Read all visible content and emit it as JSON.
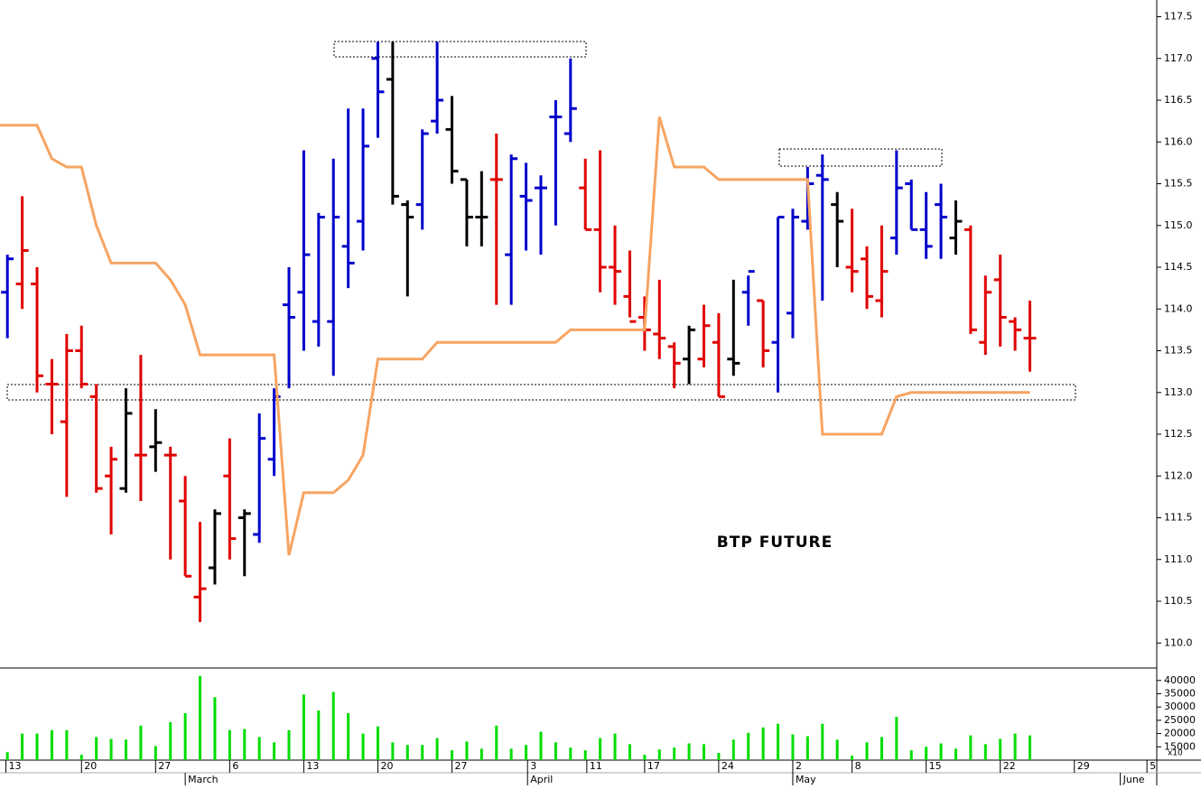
{
  "chart_data": [
    {
      "type": "ohlc",
      "annotation": "BTP FUTURE",
      "xlim": [
        -0.5,
        77.5
      ],
      "ylim": [
        109.7,
        117.7
      ],
      "yticks": [
        {
          "value": 110,
          "label": "110.0"
        },
        {
          "value": 110.5,
          "label": "110.5"
        },
        {
          "value": 111,
          "label": "111.0"
        },
        {
          "value": 111.5,
          "label": "111.5"
        },
        {
          "value": 112,
          "label": "112.0"
        },
        {
          "value": 112.5,
          "label": "112.5"
        },
        {
          "value": 113,
          "label": "113.0"
        },
        {
          "value": 113.5,
          "label": "113.5"
        },
        {
          "value": 114,
          "label": "114.0"
        },
        {
          "value": 114.5,
          "label": "114.5"
        },
        {
          "value": 115,
          "label": "115.0"
        },
        {
          "value": 115.5,
          "label": "115.5"
        },
        {
          "value": 116,
          "label": "116.0"
        },
        {
          "value": 116.5,
          "label": "116.5"
        },
        {
          "value": 117,
          "label": "117.0"
        },
        {
          "value": 117.5,
          "label": "117.5"
        }
      ],
      "xticks": [
        {
          "value": -0.1,
          "label": "13"
        },
        {
          "value": 5,
          "label": "20"
        },
        {
          "value": 10,
          "label": "27"
        },
        {
          "value": 15,
          "label": "6"
        },
        {
          "value": 20,
          "label": "13"
        },
        {
          "value": 25,
          "label": "20"
        },
        {
          "value": 30,
          "label": "27"
        },
        {
          "value": 35.1,
          "label": "3"
        },
        {
          "value": 39.1,
          "label": "11"
        },
        {
          "value": 43,
          "label": "17"
        },
        {
          "value": 48,
          "label": "24"
        },
        {
          "value": 53,
          "label": "2"
        },
        {
          "value": 57,
          "label": "8"
        },
        {
          "value": 62,
          "label": "15"
        },
        {
          "value": 67,
          "label": "22"
        },
        {
          "value": 72,
          "label": "29"
        },
        {
          "value": 76.9,
          "label": "5"
        }
      ],
      "month_ticks": [
        {
          "value": 12,
          "label": "March"
        },
        {
          "value": 35.1,
          "label": "April"
        },
        {
          "value": 53,
          "label": "May"
        },
        {
          "value": 75.1,
          "label": "June"
        }
      ],
      "open": [
        114.2,
        114.3,
        114.3,
        113.1,
        112.65,
        113.5,
        112.95,
        112.0,
        111.85,
        112.25,
        112.35,
        112.25,
        111.7,
        110.55,
        110.9,
        112.0,
        111.5,
        111.3,
        112.2,
        114.05,
        114.2,
        113.85,
        113.85,
        114.75,
        115.05,
        117.0,
        116.75,
        115.25,
        115.25,
        116.25,
        116.15,
        115.55,
        115.1,
        115.55,
        114.65,
        115.35,
        115.45,
        116.3,
        116.1,
        115.45,
        114.95,
        114.5,
        114.15,
        113.9,
        113.7,
        113.55,
        113.4,
        113.4,
        113.6,
        113.4,
        114.2,
        114.1,
        113.6,
        113.95,
        115.05,
        115.6,
        115.25,
        114.5,
        114.6,
        114.1,
        114.85,
        115.5,
        114.95,
        115.25,
        114.85,
        114.95,
        113.6,
        114.35,
        113.85,
        113.65
      ],
      "high": [
        114.65,
        115.35,
        114.5,
        113.4,
        113.7,
        113.8,
        113.1,
        112.35,
        113.05,
        113.45,
        112.8,
        112.35,
        112.0,
        111.45,
        111.6,
        112.45,
        111.6,
        112.75,
        113.05,
        114.5,
        115.9,
        115.15,
        115.8,
        116.4,
        116.4,
        117.2,
        117.2,
        115.3,
        116.15,
        117.2,
        116.55,
        115.55,
        115.65,
        116.1,
        115.85,
        115.75,
        115.6,
        116.5,
        117.0,
        115.8,
        115.9,
        115.0,
        114.7,
        114.15,
        114.35,
        113.6,
        113.8,
        114.05,
        113.95,
        114.35,
        114.4,
        114.1,
        115.1,
        115.2,
        115.7,
        115.85,
        115.4,
        115.2,
        114.75,
        115.0,
        115.9,
        115.55,
        115.4,
        115.5,
        115.3,
        115.0,
        114.4,
        114.65,
        113.9,
        114.1
      ],
      "low": [
        113.65,
        114.0,
        113.0,
        112.5,
        111.75,
        113.05,
        111.8,
        111.3,
        111.8,
        111.7,
        112.05,
        111.0,
        110.8,
        110.25,
        110.7,
        111.0,
        110.8,
        111.2,
        112.0,
        113.05,
        113.5,
        113.55,
        113.2,
        114.25,
        114.7,
        116.05,
        115.25,
        114.15,
        114.95,
        116.1,
        115.5,
        114.75,
        114.75,
        114.05,
        114.05,
        114.7,
        114.65,
        115.0,
        116.0,
        114.95,
        114.2,
        114.05,
        113.9,
        113.5,
        113.4,
        113.05,
        113.1,
        113.3,
        112.95,
        113.2,
        113.8,
        113.3,
        113.0,
        113.65,
        114.95,
        114.1,
        114.5,
        114.2,
        114.0,
        113.9,
        114.65,
        114.95,
        114.6,
        114.6,
        114.65,
        113.7,
        113.45,
        113.55,
        113.5,
        113.25
      ],
      "close": [
        114.6,
        114.7,
        113.2,
        113.1,
        113.5,
        113.1,
        111.85,
        112.2,
        112.75,
        112.25,
        112.4,
        112.25,
        110.8,
        110.65,
        111.55,
        111.25,
        111.55,
        112.45,
        112.95,
        113.9,
        114.65,
        115.1,
        115.1,
        114.55,
        115.95,
        116.6,
        115.35,
        115.1,
        116.1,
        116.5,
        115.65,
        115.1,
        115.1,
        115.55,
        115.8,
        115.3,
        115.45,
        116.3,
        116.4,
        114.95,
        114.5,
        114.45,
        113.85,
        113.75,
        113.65,
        113.35,
        113.75,
        113.8,
        112.95,
        113.35,
        114.45,
        113.5,
        115.1,
        115.1,
        115.5,
        115.55,
        115.05,
        114.45,
        114.15,
        114.45,
        115.45,
        114.95,
        114.75,
        115.1,
        115.05,
        113.75,
        114.2,
        113.9,
        113.75,
        113.65
      ],
      "colors": [
        "#0000cc",
        "#e00000",
        "#e00000",
        "#e00000",
        "#e00000",
        "#e00000",
        "#e00000",
        "#e00000",
        "#000000",
        "#e00000",
        "#000000",
        "#e00000",
        "#e00000",
        "#e00000",
        "#000000",
        "#e00000",
        "#000000",
        "#0000cc",
        "#0000cc",
        "#0000cc",
        "#0000cc",
        "#0000cc",
        "#0000cc",
        "#0000cc",
        "#0000cc",
        "#0000cc",
        "#000000",
        "#000000",
        "#0000cc",
        "#0000cc",
        "#000000",
        "#000000",
        "#000000",
        "#e00000",
        "#0000cc",
        "#0000cc",
        "#0000cc",
        "#0000cc",
        "#0000cc",
        "#e00000",
        "#e00000",
        "#e00000",
        "#e00000",
        "#e00000",
        "#e00000",
        "#e00000",
        "#000000",
        "#e00000",
        "#e00000",
        "#000000",
        "#0000cc",
        "#e00000",
        "#0000cc",
        "#0000cc",
        "#0000cc",
        "#0000cc",
        "#000000",
        "#e00000",
        "#e00000",
        "#e00000",
        "#0000cc",
        "#0000cc",
        "#0000cc",
        "#0000cc",
        "#000000",
        "#e00000",
        "#e00000",
        "#e00000",
        "#e00000",
        "#e00000"
      ],
      "overlay": {
        "type": "line",
        "color": "#f7a462",
        "x": [
          -0.5,
          2,
          3,
          4,
          5,
          6,
          7,
          10,
          11,
          12,
          13,
          18,
          19,
          20,
          22,
          23,
          24,
          25,
          28,
          29,
          37,
          38,
          43,
          44,
          45,
          47,
          48,
          54,
          55,
          59,
          60,
          61,
          69
        ],
        "values": [
          116.2,
          116.2,
          115.8,
          115.7,
          115.7,
          115.0,
          114.55,
          114.55,
          114.35,
          114.05,
          113.45,
          113.45,
          111.05,
          111.8,
          111.8,
          111.95,
          112.25,
          113.4,
          113.4,
          113.6,
          113.6,
          113.75,
          113.75,
          116.3,
          115.7,
          115.7,
          115.55,
          115.55,
          112.5,
          112.5,
          112.95,
          113.0,
          113.0
        ]
      }
    },
    {
      "type": "bar",
      "color": "#00dd00",
      "axis_note": "x10",
      "ylim": [
        10000,
        44000
      ],
      "yticks": [
        40000,
        35000,
        30000,
        25000,
        20000,
        15000
      ],
      "values": [
        13000,
        20000,
        20000,
        21300,
        21300,
        12000,
        18700,
        18000,
        17700,
        23000,
        15300,
        24300,
        27700,
        41700,
        33700,
        21300,
        21700,
        18700,
        16700,
        21300,
        34700,
        28700,
        35700,
        27700,
        20000,
        22700,
        16700,
        15700,
        15700,
        18300,
        13700,
        17000,
        14300,
        23000,
        14300,
        15700,
        20700,
        16700,
        14700,
        13700,
        18300,
        20000,
        16000,
        12000,
        14000,
        14700,
        16300,
        16000,
        12700,
        17700,
        20300,
        22300,
        23700,
        19700,
        19000,
        23700,
        17700,
        11700,
        16700,
        18700,
        26300,
        13700,
        15000,
        16300,
        14300,
        19300,
        16000,
        18000,
        20000,
        19300
      ]
    }
  ]
}
